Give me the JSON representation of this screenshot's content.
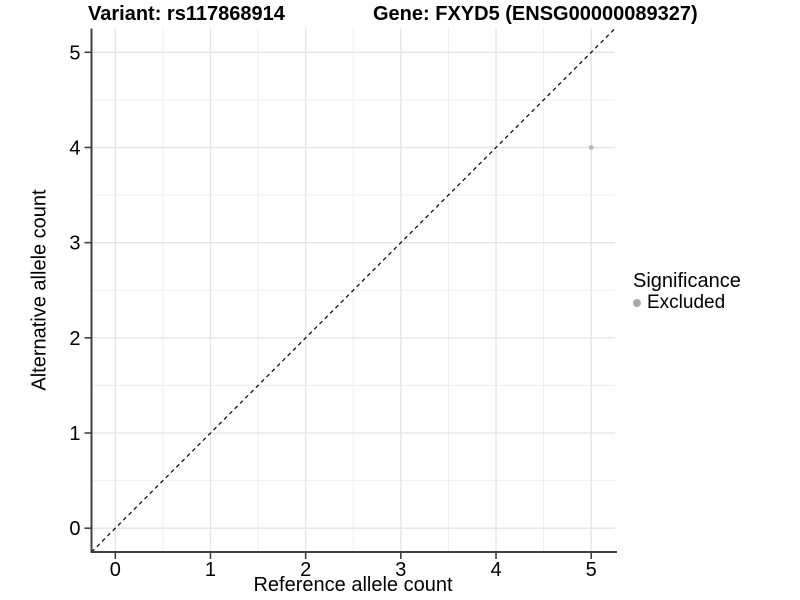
{
  "titles": {
    "left": "Variant: rs117868914",
    "right": "Gene: FXYD5 (ENSG00000089327)"
  },
  "legend": {
    "title": "Significance",
    "items": [
      {
        "label": "Excluded",
        "color": "#a9a9a9"
      }
    ]
  },
  "chart_data": {
    "type": "scatter",
    "title": "Variant: rs117868914    Gene: FXYD5 (ENSG00000089327)",
    "xlabel": "Reference allele count",
    "ylabel": "Alternative allele count",
    "xlim": [
      -0.25,
      5.25
    ],
    "ylim": [
      -0.25,
      5.25
    ],
    "xticks": [
      0,
      1,
      2,
      3,
      4,
      5
    ],
    "yticks": [
      0,
      1,
      2,
      3,
      4,
      5
    ],
    "minor_ticks": [
      0.5,
      1.5,
      2.5,
      3.5,
      4.5
    ],
    "grid": true,
    "legend_position": "right",
    "series": [
      {
        "name": "Excluded",
        "points": [
          {
            "x": 5,
            "y": 4
          }
        ],
        "color": "#b7b7b7"
      }
    ],
    "reference_line": {
      "type": "identity",
      "slope": 1,
      "intercept": 0,
      "style": "dashed",
      "color": "#000000"
    },
    "colors": {
      "background": "#ffffff",
      "grid_major": "#e3e3e3",
      "grid_minor": "#efefef",
      "axis": "#404040",
      "tick_label": "#000000"
    }
  }
}
